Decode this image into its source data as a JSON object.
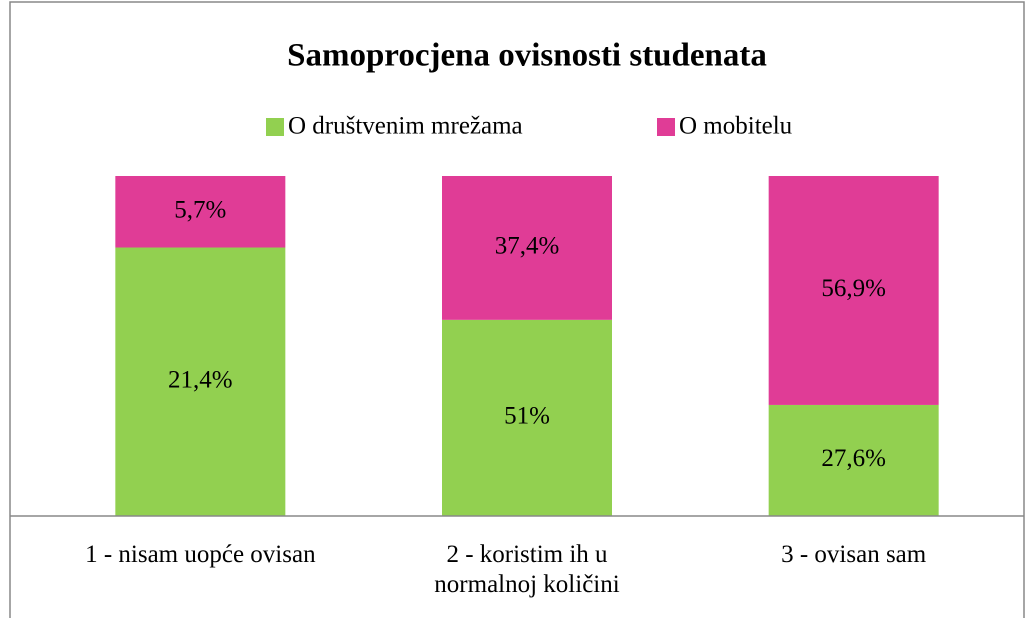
{
  "chart_data": {
    "type": "bar",
    "stacked": "percent",
    "title": "Samoprocjena ovisnosti studenata",
    "categories": [
      "1 - nisam uopće ovisan",
      "2 - koristim ih u normalnoj količini",
      "3 - ovisan sam"
    ],
    "series": [
      {
        "name": "O društvenim mrežama",
        "color": "#92d050",
        "values": [
          21.4,
          51,
          27.6
        ],
        "value_labels": [
          "21,4%",
          "51%",
          "27,6%"
        ]
      },
      {
        "name": "O mobitelu",
        "color": "#e03c96",
        "values": [
          5.7,
          37.4,
          56.9
        ],
        "value_labels": [
          "5,7%",
          "37,4%",
          "56,9%"
        ]
      }
    ],
    "legend": "top"
  }
}
